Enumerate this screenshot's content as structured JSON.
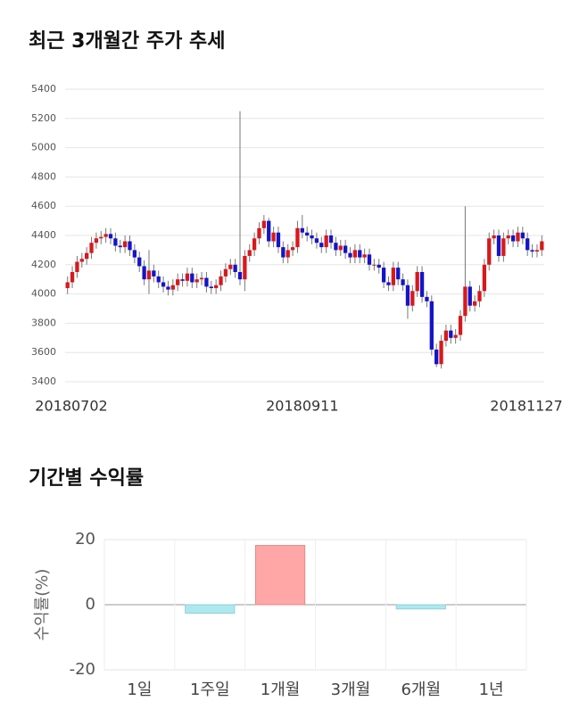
{
  "chart_data": [
    {
      "type": "candlestick",
      "title": "최근 3개월간 주가 추세",
      "categories": [
        "20180702",
        null,
        null,
        null,
        null,
        null,
        null,
        null,
        null,
        null,
        null,
        null,
        null,
        null,
        null,
        null,
        null,
        null,
        null,
        null,
        null,
        null,
        null,
        null,
        null,
        null,
        null,
        null,
        null,
        null,
        null,
        null,
        null,
        null,
        null,
        null,
        null,
        null,
        null,
        null,
        null,
        null,
        null,
        null,
        null,
        null,
        null,
        null,
        null,
        "20180911",
        null,
        null,
        null,
        null,
        null,
        null,
        null,
        null,
        null,
        null,
        null,
        null,
        null,
        null,
        null,
        null,
        null,
        null,
        null,
        null,
        null,
        null,
        null,
        null,
        null,
        null,
        null,
        null,
        null,
        null,
        null,
        null,
        null,
        null,
        null,
        null,
        null,
        null,
        null,
        null,
        null,
        null,
        null,
        null,
        null,
        null,
        null,
        null,
        null,
        "20181127"
      ],
      "open": [
        4040,
        4080,
        4150,
        4220,
        4240,
        4280,
        4350,
        4380,
        4390,
        4410,
        4380,
        4330,
        4320,
        4360,
        4300,
        4250,
        4190,
        4100,
        4160,
        4120,
        4080,
        4050,
        4030,
        4060,
        4100,
        4090,
        4140,
        4080,
        4100,
        4110,
        4050,
        4040,
        4060,
        4120,
        4170,
        4200,
        4150,
        4100,
        4260,
        4300,
        4380,
        4450,
        4500,
        4360,
        4420,
        4320,
        4250,
        4300,
        4320,
        4450,
        4420,
        4400,
        4380,
        4350,
        4320,
        4400,
        4350,
        4300,
        4330,
        4280,
        4250,
        4300,
        4250,
        4270,
        4200,
        4200,
        4180,
        4080,
        4060,
        4180,
        4100,
        4060,
        3920,
        4020,
        4150,
        3980,
        3950,
        3620,
        3520,
        3680,
        3750,
        3700,
        3720,
        3850,
        4050,
        3920,
        3950,
        4020,
        4200,
        4380,
        4400,
        4260,
        4380,
        4400,
        4360,
        4420,
        4380,
        4300,
        4290,
        4300
      ],
      "high": [
        4120,
        4190,
        4260,
        4280,
        4320,
        4390,
        4420,
        4430,
        4450,
        4450,
        4420,
        4370,
        4400,
        4400,
        4340,
        4290,
        4230,
        4300,
        4200,
        4160,
        4120,
        4090,
        4100,
        4140,
        4140,
        4180,
        4180,
        4140,
        4150,
        4150,
        4090,
        4100,
        4160,
        4210,
        4240,
        4240,
        5250,
        4300,
        4340,
        4420,
        4490,
        4540,
        4520,
        4460,
        4460,
        4360,
        4340,
        4360,
        4500,
        4540,
        4460,
        4440,
        4420,
        4390,
        4440,
        4440,
        4390,
        4370,
        4370,
        4320,
        4340,
        4340,
        4310,
        4310,
        4240,
        4240,
        4220,
        4120,
        4220,
        4220,
        4140,
        4100,
        4060,
        4190,
        4190,
        4020,
        3990,
        3660,
        3720,
        3790,
        3790,
        3760,
        3890,
        4600,
        4090,
        3990,
        4060,
        4240,
        4420,
        4440,
        4440,
        4420,
        4440,
        4440,
        4460,
        4460,
        4420,
        4340,
        4340,
        4400
      ],
      "low": [
        4000,
        4040,
        4110,
        4180,
        4200,
        4240,
        4310,
        4340,
        4350,
        4340,
        4290,
        4280,
        4280,
        4260,
        4210,
        4150,
        4060,
        4000,
        4080,
        4040,
        4010,
        3990,
        3990,
        4020,
        4050,
        4050,
        4040,
        4040,
        4060,
        4010,
        4000,
        4000,
        4020,
        4080,
        4130,
        4110,
        4060,
        4020,
        4220,
        4260,
        4340,
        4410,
        4320,
        4320,
        4280,
        4210,
        4210,
        4260,
        4280,
        4380,
        4360,
        4340,
        4310,
        4280,
        4280,
        4310,
        4260,
        4260,
        4240,
        4210,
        4210,
        4210,
        4210,
        4160,
        4160,
        4140,
        4040,
        4020,
        4020,
        4060,
        4020,
        3830,
        3880,
        3980,
        3940,
        3910,
        3580,
        3500,
        3490,
        3640,
        3660,
        3660,
        3680,
        3810,
        3880,
        3880,
        3910,
        3980,
        4160,
        4340,
        4220,
        4220,
        4340,
        4320,
        4320,
        4340,
        4260,
        4250,
        4250,
        4260
      ],
      "close": [
        4080,
        4150,
        4220,
        4240,
        4280,
        4350,
        4380,
        4390,
        4410,
        4380,
        4330,
        4320,
        4360,
        4300,
        4250,
        4190,
        4100,
        4160,
        4120,
        4080,
        4050,
        4030,
        4060,
        4100,
        4090,
        4140,
        4080,
        4100,
        4110,
        4050,
        4040,
        4060,
        4120,
        4170,
        4200,
        4150,
        4100,
        4260,
        4300,
        4380,
        4450,
        4500,
        4360,
        4420,
        4320,
        4250,
        4300,
        4320,
        4450,
        4420,
        4400,
        4380,
        4350,
        4320,
        4400,
        4350,
        4300,
        4330,
        4280,
        4250,
        4300,
        4250,
        4270,
        4200,
        4200,
        4180,
        4080,
        4060,
        4180,
        4100,
        4060,
        3920,
        4020,
        4150,
        3980,
        3950,
        3620,
        3520,
        3680,
        3750,
        3700,
        3720,
        3850,
        4050,
        3920,
        3950,
        4020,
        4200,
        4380,
        4400,
        4260,
        4380,
        4400,
        4360,
        4420,
        4380,
        4300,
        4290,
        4300,
        4360
      ],
      "up_color": "#d7191c",
      "down_color": "#1414c8",
      "ylim": [
        3400,
        5400
      ],
      "yticks": [
        3400,
        3600,
        3800,
        4000,
        4200,
        4400,
        4600,
        4800,
        5000,
        5200,
        5400
      ],
      "grid": true
    },
    {
      "type": "bar",
      "title": "기간별 수익률",
      "ylabel": "수익률(%)",
      "categories": [
        "1일",
        "1주일",
        "1개월",
        "3개월",
        "6개월",
        "1년"
      ],
      "values": [
        0,
        -2.6,
        18.2,
        0,
        -1.3,
        0
      ],
      "positive_color": "#ffa6a6",
      "negative_color": "#aee8ef",
      "ylim": [
        -20,
        20
      ],
      "yticks": [
        -20,
        0,
        20
      ],
      "grid": true
    }
  ]
}
